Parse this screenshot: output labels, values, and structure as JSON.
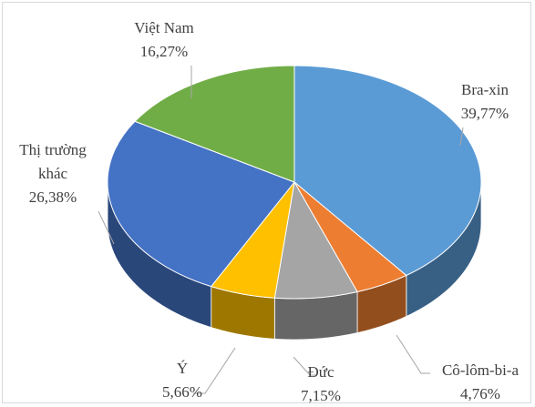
{
  "chart_data": {
    "type": "pie",
    "categories": [
      "Bra-xin",
      "Cô-lôm-bi-a",
      "Đức",
      "Ý",
      "Thị trường khác",
      "Việt Nam"
    ],
    "values": [
      39.77,
      4.76,
      7.15,
      5.66,
      26.38,
      16.27
    ],
    "value_labels": [
      "39,77%",
      "4,76%",
      "7,15%",
      "5,66%",
      "26,38%",
      "16,27%"
    ],
    "colors": [
      "#5b9bd5",
      "#ed7d31",
      "#a5a5a5",
      "#ffc000",
      "#4472c4",
      "#70ad47"
    ]
  }
}
